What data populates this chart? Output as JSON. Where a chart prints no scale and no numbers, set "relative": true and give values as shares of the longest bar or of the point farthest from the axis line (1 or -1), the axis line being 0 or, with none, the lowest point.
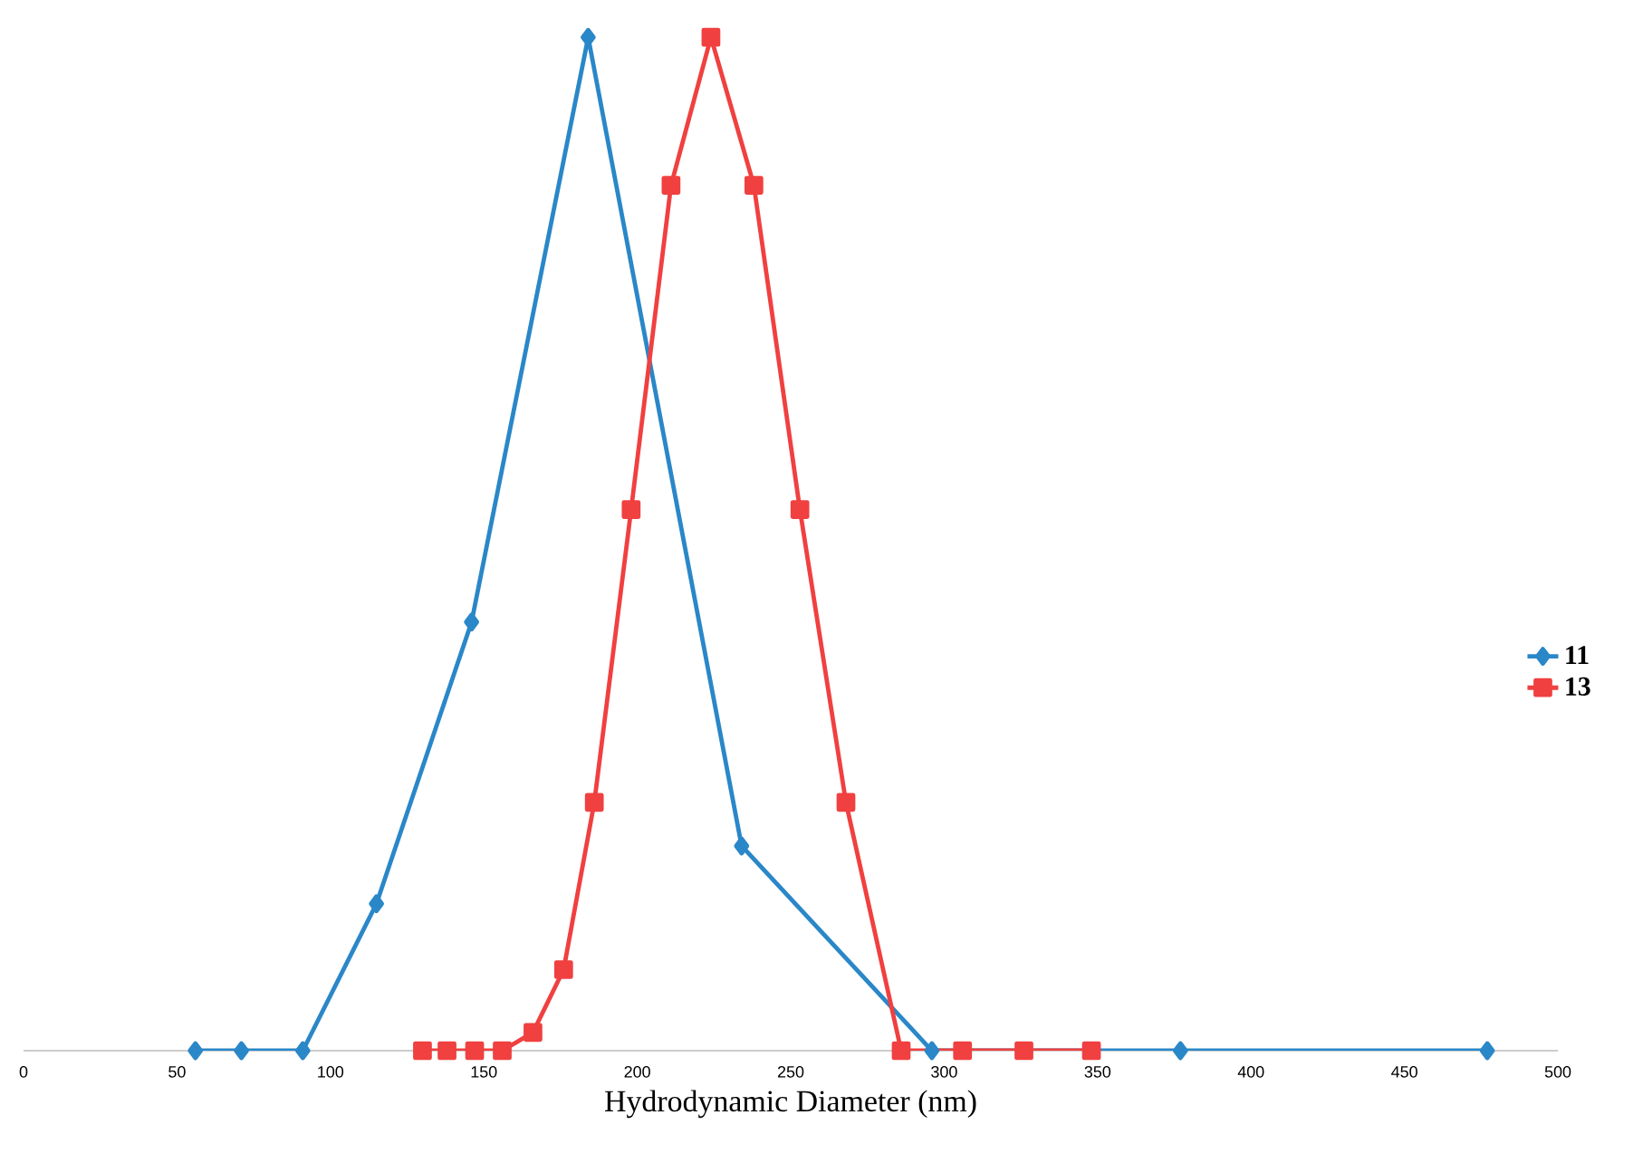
{
  "chart_data": {
    "type": "line",
    "relative": true,
    "xlabel": "Hydrodynamic Diameter (nm)",
    "xlim": [
      0,
      500
    ],
    "xticks": [
      0,
      50,
      100,
      150,
      200,
      250,
      300,
      350,
      400,
      450,
      500
    ],
    "legend": "right",
    "grid": false,
    "series": [
      {
        "name": "11",
        "color": "#2a87c8",
        "marker": "diamond",
        "x": [
          56,
          71,
          91,
          115,
          146,
          184,
          234,
          296,
          377,
          477
        ],
        "values": [
          0,
          0,
          0,
          0.145,
          0.423,
          1,
          0.202,
          0,
          0,
          0
        ]
      },
      {
        "name": "13",
        "color": "#f04040",
        "marker": "square",
        "x": [
          130,
          138,
          147,
          156,
          166,
          176,
          186,
          198,
          211,
          224,
          238,
          253,
          268,
          286,
          306,
          326,
          348
        ],
        "values": [
          0,
          0,
          0,
          0,
          0.018,
          0.08,
          0.245,
          0.534,
          0.854,
          1,
          0.854,
          0.534,
          0.245,
          0,
          0,
          0,
          0
        ]
      }
    ]
  }
}
